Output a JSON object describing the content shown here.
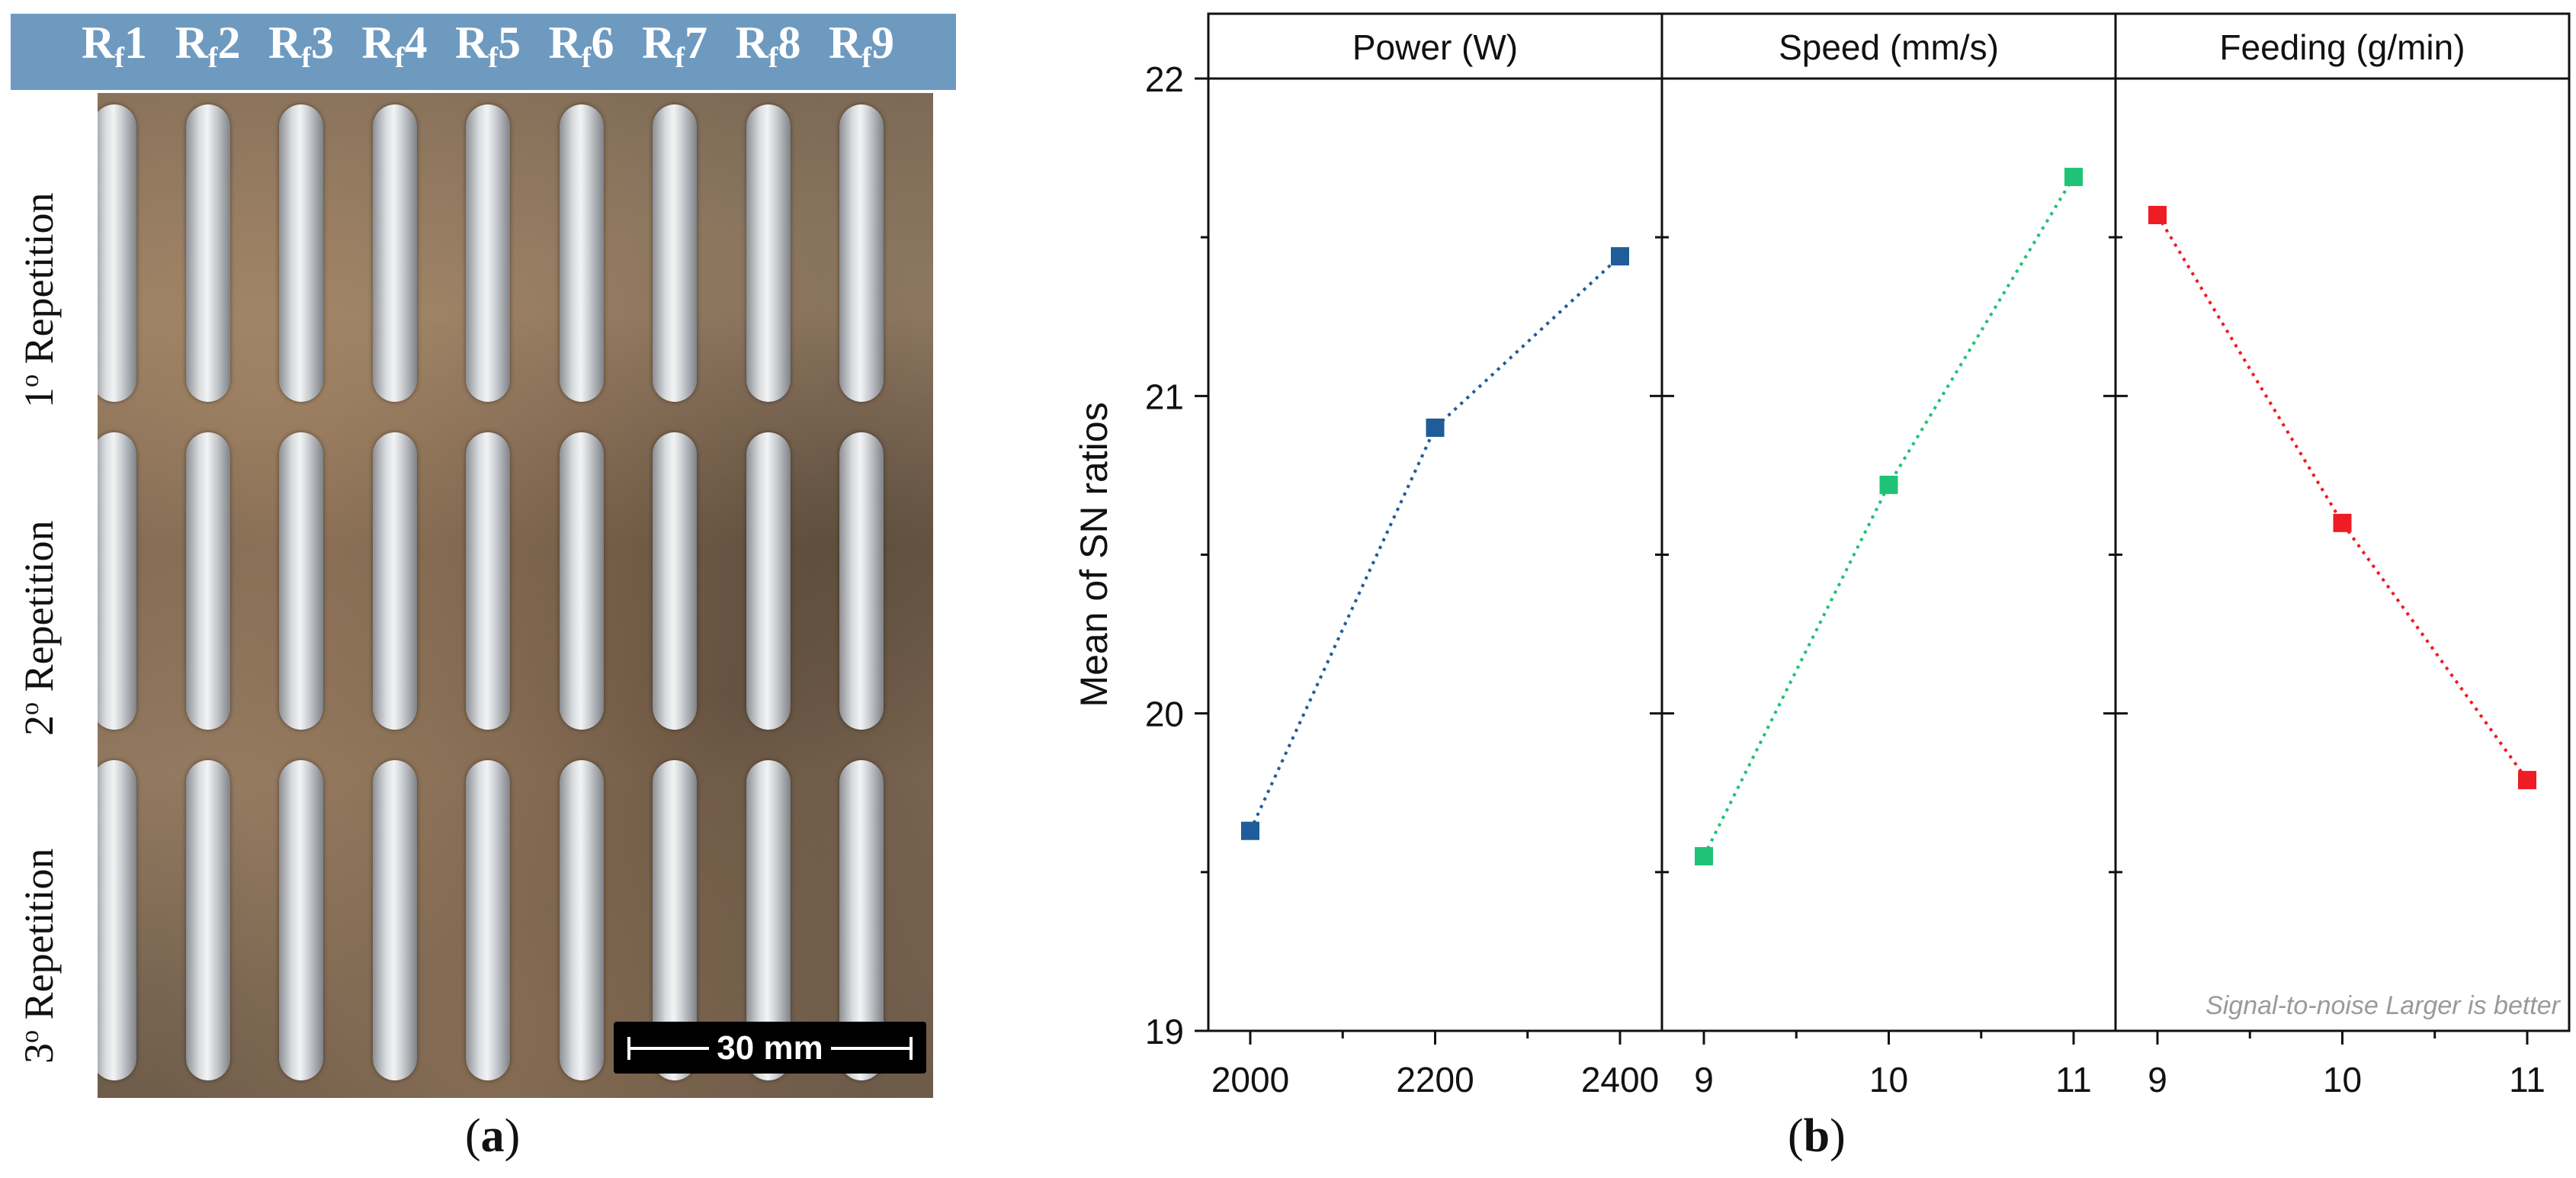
{
  "figure_a": {
    "column_labels": [
      {
        "main": "R",
        "sub": "f",
        "num": "1"
      },
      {
        "main": "R",
        "sub": "f",
        "num": "2"
      },
      {
        "main": "R",
        "sub": "f",
        "num": "3"
      },
      {
        "main": "R",
        "sub": "f",
        "num": "4"
      },
      {
        "main": "R",
        "sub": "f",
        "num": "5"
      },
      {
        "main": "R",
        "sub": "f",
        "num": "6"
      },
      {
        "main": "R",
        "sub": "f",
        "num": "7"
      },
      {
        "main": "R",
        "sub": "f",
        "num": "8"
      },
      {
        "main": "R",
        "sub": "f",
        "num": "9"
      }
    ],
    "row_labels": [
      {
        "num": "1",
        "sup": "o",
        "word": " Repetition"
      },
      {
        "num": "2",
        "sup": "o",
        "word": " Repetition"
      },
      {
        "num": "3",
        "sup": "o",
        "word": " Repetition"
      }
    ],
    "scale_bar": "30 mm",
    "caption_open": "(",
    "caption_letter": "a",
    "caption_close": ")"
  },
  "figure_b": {
    "caption_open": "(",
    "caption_letter": "b",
    "caption_close": ")"
  },
  "chart_data": {
    "type": "line",
    "ylabel": "Mean of SN ratios",
    "ylim": [
      19,
      22
    ],
    "yticks": [
      19,
      20,
      21,
      22
    ],
    "grid": false,
    "annotation": "Signal-to-noise Larger is better",
    "panels": [
      {
        "title": "Power (W)",
        "x": [
          2000,
          2200,
          2400
        ],
        "xtick_labels": [
          "2000",
          "2200",
          "2400"
        ],
        "y": [
          19.63,
          20.9,
          21.44
        ],
        "color": "#1f5c99"
      },
      {
        "title": "Speed (mm/s)",
        "x": [
          9,
          10,
          11
        ],
        "xtick_labels": [
          "9",
          "10",
          "11"
        ],
        "y": [
          19.55,
          20.72,
          21.69
        ],
        "color": "#1fc276"
      },
      {
        "title": "Feeding (g/min)",
        "x": [
          9,
          10,
          11
        ],
        "xtick_labels": [
          "9",
          "10",
          "11"
        ],
        "y": [
          21.57,
          20.6,
          19.79
        ],
        "color": "#ee1c24"
      }
    ]
  }
}
